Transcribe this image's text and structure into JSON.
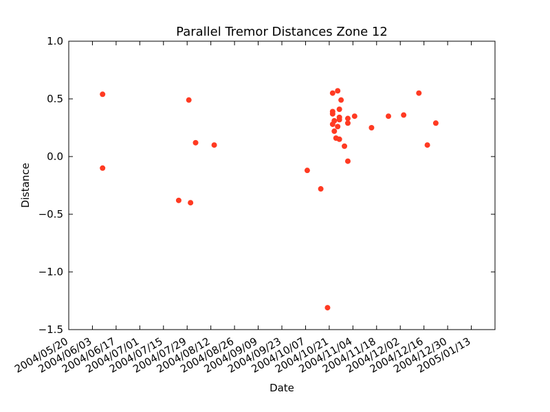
{
  "chart_data": {
    "type": "scatter",
    "title": "Parallel Tremor Distances Zone 12",
    "xlabel": "Date",
    "ylabel": "Distance",
    "x_type": "date",
    "xlim": [
      "2004-05-20",
      "2005-01-27"
    ],
    "ylim": [
      -1.5,
      1.0
    ],
    "x_ticks": [
      "2004-05-20",
      "2004-06-03",
      "2004-06-17",
      "2004-07-01",
      "2004-07-15",
      "2004-07-29",
      "2004-08-12",
      "2004-08-26",
      "2004-09-09",
      "2004-09-23",
      "2004-10-07",
      "2004-10-21",
      "2004-11-04",
      "2004-11-18",
      "2004-12-02",
      "2004-12-16",
      "2004-12-30",
      "2005-01-13"
    ],
    "x_tick_labels": [
      "2004/05/20",
      "2004/06/03",
      "2004/06/17",
      "2004/07/01",
      "2004/07/15",
      "2004/07/29",
      "2004/08/12",
      "2004/08/26",
      "2004/09/09",
      "2004/09/23",
      "2004/10/07",
      "2004/10/21",
      "2004/11/04",
      "2004/11/18",
      "2004/12/02",
      "2004/12/16",
      "2004/12/30",
      "2005/01/13"
    ],
    "y_ticks": [
      1.0,
      0.5,
      0.0,
      -0.5,
      -1.0,
      -1.5
    ],
    "y_tick_labels": [
      "1.0",
      "0.5",
      "0.0",
      "−0.5",
      "−1.0",
      "−1.5"
    ],
    "grid": false,
    "marker_color": "#ff3a22",
    "points": [
      {
        "x": "2004-06-09",
        "y": 0.54
      },
      {
        "x": "2004-06-09",
        "y": -0.1
      },
      {
        "x": "2004-07-24",
        "y": -0.38
      },
      {
        "x": "2004-07-30",
        "y": 0.49
      },
      {
        "x": "2004-07-31",
        "y": -0.4
      },
      {
        "x": "2004-08-03",
        "y": 0.12
      },
      {
        "x": "2004-08-14",
        "y": 0.1
      },
      {
        "x": "2004-10-08",
        "y": -0.12
      },
      {
        "x": "2004-10-16",
        "y": -0.28
      },
      {
        "x": "2004-10-20",
        "y": -1.31
      },
      {
        "x": "2004-10-23",
        "y": 0.55
      },
      {
        "x": "2004-10-23",
        "y": 0.39
      },
      {
        "x": "2004-10-23",
        "y": 0.37
      },
      {
        "x": "2004-10-23",
        "y": 0.28
      },
      {
        "x": "2004-10-24",
        "y": 0.22
      },
      {
        "x": "2004-10-24",
        "y": 0.31
      },
      {
        "x": "2004-10-25",
        "y": 0.16
      },
      {
        "x": "2004-10-26",
        "y": 0.57
      },
      {
        "x": "2004-10-26",
        "y": 0.26
      },
      {
        "x": "2004-10-27",
        "y": 0.41
      },
      {
        "x": "2004-10-27",
        "y": 0.34
      },
      {
        "x": "2004-10-27",
        "y": 0.32
      },
      {
        "x": "2004-10-27",
        "y": 0.15
      },
      {
        "x": "2004-10-28",
        "y": 0.49
      },
      {
        "x": "2004-10-30",
        "y": 0.09
      },
      {
        "x": "2004-11-01",
        "y": 0.33
      },
      {
        "x": "2004-11-01",
        "y": 0.29
      },
      {
        "x": "2004-11-01",
        "y": -0.04
      },
      {
        "x": "2004-11-05",
        "y": 0.35
      },
      {
        "x": "2004-11-15",
        "y": 0.25
      },
      {
        "x": "2004-11-25",
        "y": 0.35
      },
      {
        "x": "2004-12-04",
        "y": 0.36
      },
      {
        "x": "2004-12-13",
        "y": 0.55
      },
      {
        "x": "2004-12-18",
        "y": 0.1
      },
      {
        "x": "2004-12-23",
        "y": 0.29
      }
    ]
  }
}
